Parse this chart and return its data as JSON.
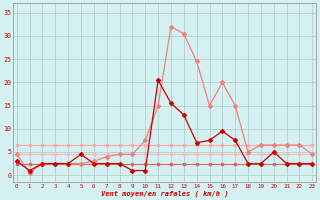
{
  "x": [
    0,
    1,
    2,
    3,
    4,
    5,
    6,
    7,
    8,
    9,
    10,
    11,
    12,
    13,
    14,
    15,
    16,
    17,
    18,
    19,
    20,
    21,
    22,
    23
  ],
  "line_dark": [
    3.0,
    1.0,
    2.5,
    2.5,
    2.5,
    4.5,
    2.5,
    2.5,
    2.5,
    1.0,
    1.0,
    20.5,
    15.5,
    13.0,
    7.0,
    7.5,
    9.5,
    7.5,
    2.5,
    2.5,
    5.0,
    2.5,
    2.5,
    2.5
  ],
  "line_salmon": [
    4.5,
    0.5,
    2.5,
    2.5,
    2.5,
    2.5,
    3.0,
    4.0,
    4.5,
    4.5,
    7.5,
    15.0,
    32.0,
    30.5,
    24.5,
    15.0,
    20.0,
    15.0,
    5.0,
    6.5,
    6.5,
    6.5,
    6.5,
    4.5
  ],
  "line_flat1": [
    6.5,
    6.5,
    6.5,
    6.5,
    6.5,
    6.5,
    6.5,
    6.5,
    6.5,
    6.5,
    6.5,
    6.5,
    6.5,
    6.5,
    6.5,
    6.5,
    6.5,
    6.5,
    6.5,
    6.5,
    6.5,
    6.5,
    6.5,
    6.5
  ],
  "line_flat2": [
    4.5,
    4.5,
    4.5,
    4.5,
    4.5,
    4.5,
    4.5,
    4.5,
    4.5,
    4.5,
    4.5,
    4.5,
    4.5,
    4.5,
    4.5,
    4.5,
    4.5,
    4.5,
    4.5,
    4.5,
    4.5,
    4.5,
    4.5,
    4.5
  ],
  "line_flat3": [
    2.5,
    2.5,
    2.5,
    2.5,
    2.5,
    2.5,
    2.5,
    2.5,
    2.5,
    2.5,
    2.5,
    2.5,
    2.5,
    2.5,
    2.5,
    2.5,
    2.5,
    2.5,
    2.5,
    2.5,
    2.5,
    2.5,
    2.5,
    2.5
  ],
  "color_dark_red": "#cc0000",
  "color_salmon": "#f08080",
  "color_flat1": "#ffaaaa",
  "color_flat2": "#ffbbbb",
  "color_flat3": "#dd6666",
  "bg_color": "#d4f0f0",
  "grid_color": "#b0c8c8",
  "xlabel": "Vent moyen/en rafales ( km/h )",
  "yticks": [
    0,
    5,
    10,
    15,
    20,
    25,
    30,
    35
  ],
  "xlim": [
    -0.3,
    23.3
  ],
  "ylim": [
    -1.5,
    37
  ]
}
